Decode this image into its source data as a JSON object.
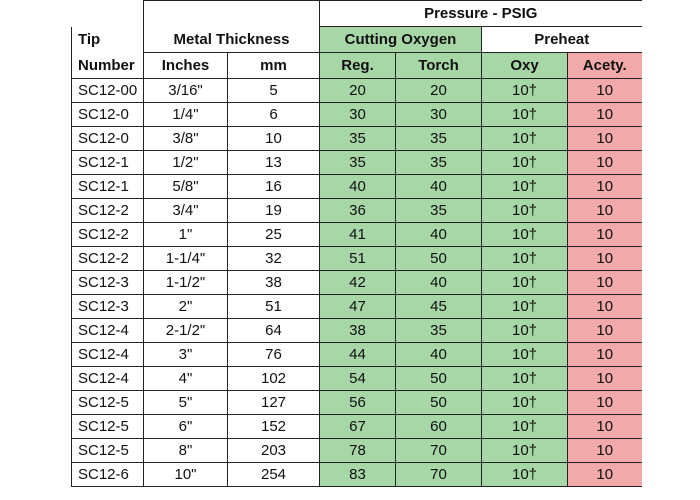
{
  "headers": {
    "tip_number_line1": "Tip",
    "tip_number_line2": "Number",
    "metal_thickness": "Metal Thickness",
    "pressure": "Pressure - PSIG",
    "cutting_oxygen": "Cutting Oxygen",
    "preheat": "Preheat",
    "inches": "Inches",
    "mm": "mm",
    "reg": "Reg.",
    "torch": "Torch",
    "oxy": "Oxy",
    "acety": "Acety."
  },
  "colors": {
    "green": "#a7d7a6",
    "pink": "#f2a9a9"
  },
  "rows": [
    {
      "tip": "SC12-00",
      "inches": "3/16\"",
      "mm": "5",
      "reg": "20",
      "torch": "20",
      "oxy": "10†",
      "acety": "10"
    },
    {
      "tip": "SC12-0",
      "inches": "1/4\"",
      "mm": "6",
      "reg": "30",
      "torch": "30",
      "oxy": "10†",
      "acety": "10"
    },
    {
      "tip": "SC12-0",
      "inches": "3/8\"",
      "mm": "10",
      "reg": "35",
      "torch": "35",
      "oxy": "10†",
      "acety": "10"
    },
    {
      "tip": "SC12-1",
      "inches": "1/2\"",
      "mm": "13",
      "reg": "35",
      "torch": "35",
      "oxy": "10†",
      "acety": "10"
    },
    {
      "tip": "SC12-1",
      "inches": "5/8\"",
      "mm": "16",
      "reg": "40",
      "torch": "40",
      "oxy": "10†",
      "acety": "10"
    },
    {
      "tip": "SC12-2",
      "inches": "3/4\"",
      "mm": "19",
      "reg": "36",
      "torch": "35",
      "oxy": "10†",
      "acety": "10"
    },
    {
      "tip": "SC12-2",
      "inches": "1\"",
      "mm": "25",
      "reg": "41",
      "torch": "40",
      "oxy": "10†",
      "acety": "10"
    },
    {
      "tip": "SC12-2",
      "inches": "1-1/4\"",
      "mm": "32",
      "reg": "51",
      "torch": "50",
      "oxy": "10†",
      "acety": "10"
    },
    {
      "tip": "SC12-3",
      "inches": "1-1/2\"",
      "mm": "38",
      "reg": "42",
      "torch": "40",
      "oxy": "10†",
      "acety": "10"
    },
    {
      "tip": "SC12-3",
      "inches": "2\"",
      "mm": "51",
      "reg": "47",
      "torch": "45",
      "oxy": "10†",
      "acety": "10"
    },
    {
      "tip": "SC12-4",
      "inches": "2-1/2\"",
      "mm": "64",
      "reg": "38",
      "torch": "35",
      "oxy": "10†",
      "acety": "10"
    },
    {
      "tip": "SC12-4",
      "inches": "3\"",
      "mm": "76",
      "reg": "44",
      "torch": "40",
      "oxy": "10†",
      "acety": "10"
    },
    {
      "tip": "SC12-4",
      "inches": "4\"",
      "mm": "102",
      "reg": "54",
      "torch": "50",
      "oxy": "10†",
      "acety": "10"
    },
    {
      "tip": "SC12-5",
      "inches": "5\"",
      "mm": "127",
      "reg": "56",
      "torch": "50",
      "oxy": "10†",
      "acety": "10"
    },
    {
      "tip": "SC12-5",
      "inches": "6\"",
      "mm": "152",
      "reg": "67",
      "torch": "60",
      "oxy": "10†",
      "acety": "10"
    },
    {
      "tip": "SC12-5",
      "inches": "8\"",
      "mm": "203",
      "reg": "78",
      "torch": "70",
      "oxy": "10†",
      "acety": "10"
    },
    {
      "tip": "SC12-6",
      "inches": "10\"",
      "mm": "254",
      "reg": "83",
      "torch": "70",
      "oxy": "10†",
      "acety": "10"
    }
  ]
}
